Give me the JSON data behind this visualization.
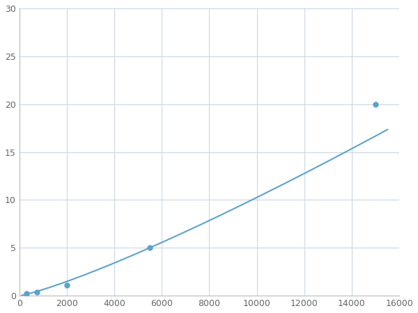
{
  "x_data": [
    300,
    750,
    2000,
    5500,
    15000
  ],
  "y_data": [
    0.2,
    0.4,
    1.1,
    5.0,
    20.0
  ],
  "line_color": "#5ba3c9",
  "marker_color": "#5ba3c9",
  "marker_size": 5,
  "line_width": 1.5,
  "xlim": [
    0,
    16000
  ],
  "ylim": [
    0,
    30
  ],
  "xticks": [
    0,
    2000,
    4000,
    6000,
    8000,
    10000,
    12000,
    14000,
    16000
  ],
  "yticks": [
    0,
    5,
    10,
    15,
    20,
    25,
    30
  ],
  "grid_color": "#c8d8e8",
  "background_color": "#ffffff",
  "tick_label_color": "#666666",
  "tick_fontsize": 9,
  "power_law_a": 0.000823,
  "power_law_b": 1.22
}
